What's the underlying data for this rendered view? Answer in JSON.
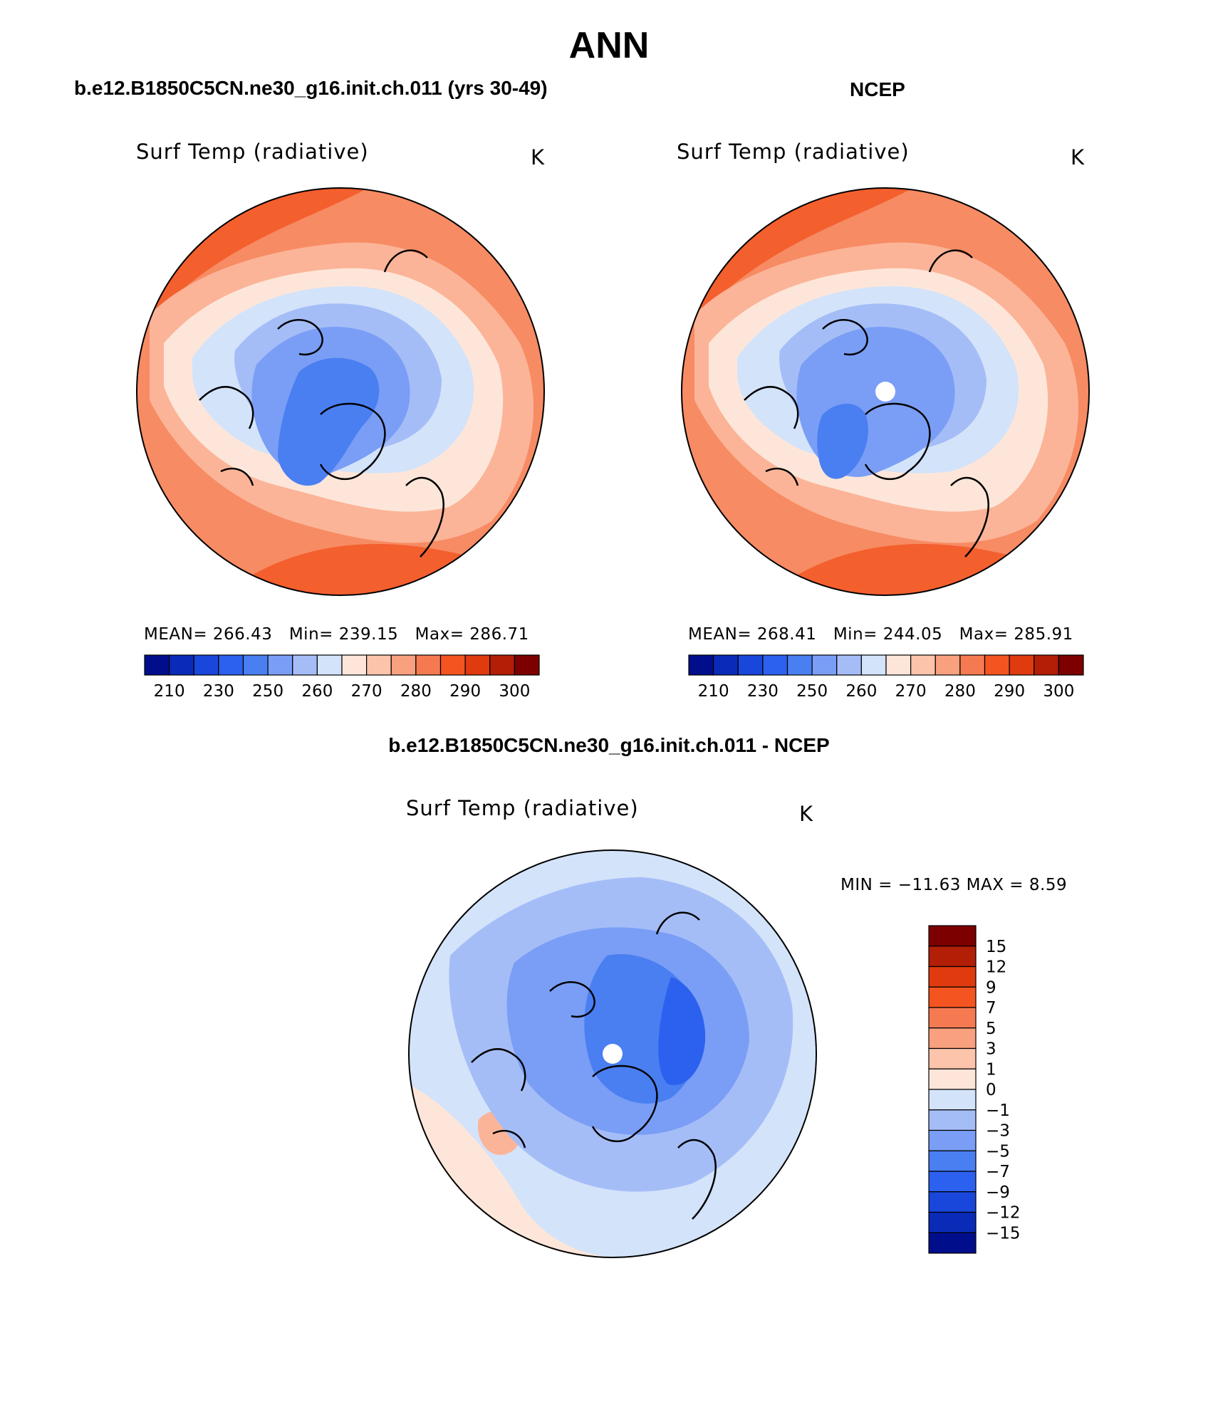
{
  "figure": {
    "title": "ANN",
    "field": "Surf Temp (radiative)",
    "unit": "K"
  },
  "panels": {
    "model": {
      "title": "b.e12.B1850C5CN.ne30_g16.init.ch.011 (yrs 30-49)",
      "mean_label": "MEAN=",
      "mean": "266.43",
      "min_label": "Min=",
      "min": "239.15",
      "max_label": "Max=",
      "max": "286.71"
    },
    "obs": {
      "title": "NCEP",
      "mean_label": "MEAN=",
      "mean": "268.41",
      "min_label": "Min=",
      "min": "244.05",
      "max_label": "Max=",
      "max": "285.91"
    },
    "diff": {
      "title": "b.e12.B1850C5CN.ne30_g16.init.ch.011 - NCEP",
      "minmax_text": "MIN = −11.63  MAX =    8.59"
    }
  },
  "colorbars": {
    "abs": {
      "colors": [
        "#000e8c",
        "#0a2bb8",
        "#1a47db",
        "#2c61f0",
        "#4a7ff2",
        "#7a9ef5",
        "#a5bdf7",
        "#d3e3fa",
        "#fde6d9",
        "#fcc4ab",
        "#f9a07e",
        "#f67a51",
        "#f45420",
        "#e03a0f",
        "#b31e06",
        "#7d0000"
      ],
      "ticks": [
        "210",
        "230",
        "250",
        "260",
        "270",
        "280",
        "290",
        "300"
      ]
    },
    "diff": {
      "colors": [
        "#000e8c",
        "#0a2bb8",
        "#1a47db",
        "#2c61f0",
        "#4a7ff2",
        "#7a9ef5",
        "#a5bdf7",
        "#d3e3fa",
        "#fde6d9",
        "#fcc4ab",
        "#f9a07e",
        "#f67a51",
        "#f45420",
        "#e03a0f",
        "#b31e06",
        "#7d0000"
      ],
      "ticks": [
        "15",
        "12",
        "9",
        "7",
        "5",
        "3",
        "1",
        "0",
        "−1",
        "−3",
        "−5",
        "−7",
        "−9",
        "−12",
        "−15"
      ]
    }
  },
  "map_colors": {
    "warm_strong": "#f45f2e",
    "warm_mid": "#f78b63",
    "warm_light": "#fbb498",
    "warm_pale": "#fde6d9",
    "cool_pale": "#d3e3fa",
    "cool_light": "#a5bdf7",
    "cool_mid": "#7a9ef5",
    "cool_strong": "#4a7ff2",
    "cool_deep": "#2c61f0",
    "missing": "#ffffff"
  }
}
